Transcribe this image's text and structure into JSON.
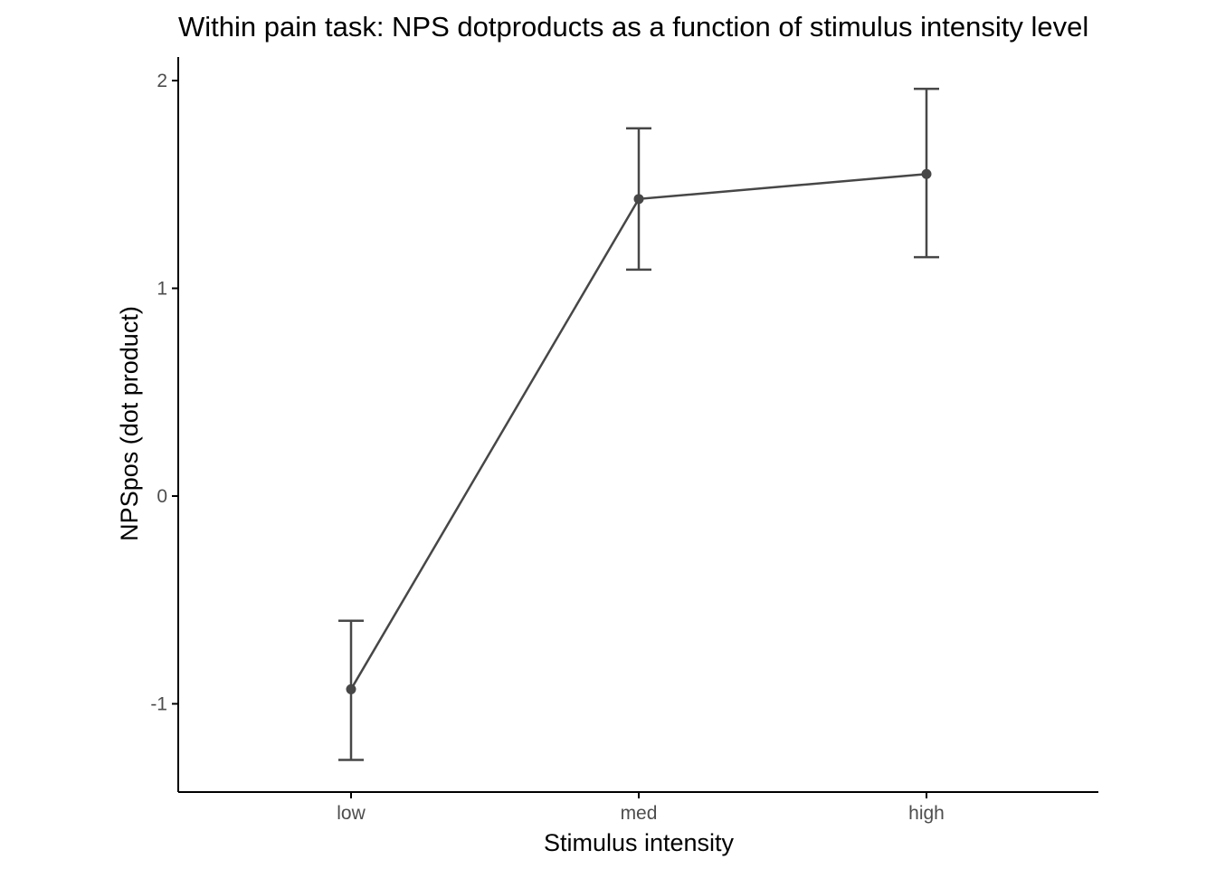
{
  "chart_data": {
    "type": "line",
    "title": "Within pain task: NPS dotproducts as a function of stimulus intensity level",
    "xlabel": "Stimulus intensity",
    "ylabel": "NPSpos (dot product)",
    "categories": [
      "low",
      "med",
      "high"
    ],
    "series": [
      {
        "values": [
          -0.93,
          1.43,
          1.55
        ],
        "error_lower": [
          -1.27,
          1.09,
          1.15
        ],
        "error_upper": [
          -0.6,
          1.77,
          1.96
        ]
      }
    ],
    "ylim": [
      -1.42,
      2.12
    ],
    "yticks": [
      -1,
      0,
      1,
      2
    ],
    "ytick_labels": [
      "-1",
      "0",
      "1",
      "2"
    ],
    "grid": false,
    "legend": "none",
    "colors": {
      "series": "#474747",
      "axis": "#000000",
      "tick_label": "#4d4d4d"
    }
  }
}
